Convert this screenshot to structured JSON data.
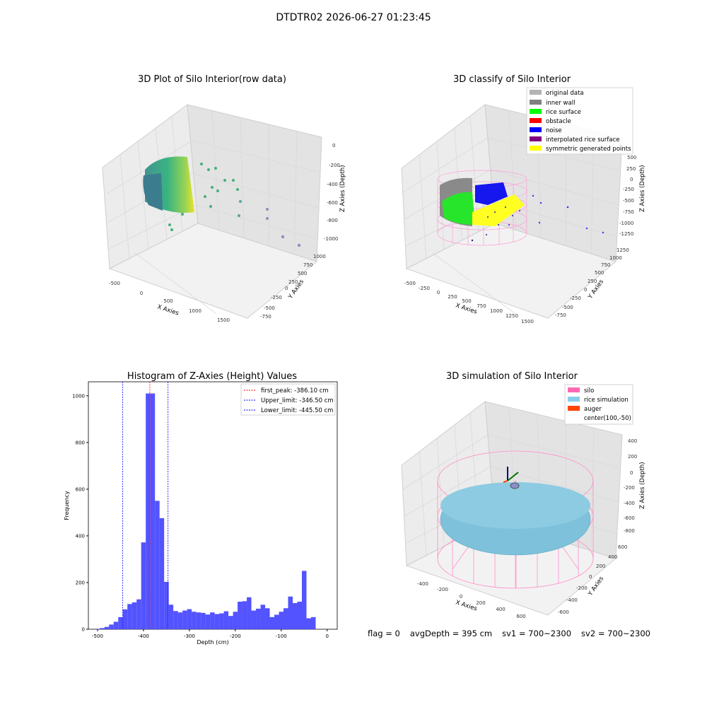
{
  "figure": {
    "suptitle": "DTDTR02 2026-06-27 01:23:45",
    "footer": {
      "flag": "flag = 0",
      "avg": "avgDepth = 395 cm",
      "sv1": "sv1 = 700~2300",
      "sv2": "sv2 = 700~2300"
    }
  },
  "chart_data": [
    {
      "type": "scatter3d",
      "title": "3D Plot of Silo Interior(row data)",
      "xlabel": "X Axies",
      "ylabel": "Y Axies",
      "zlabel": "Z Axies (Depth)",
      "xticks": [
        "-500",
        "0",
        "500",
        "1000",
        "1500"
      ],
      "yticks": [
        "-750",
        "-500",
        "-250",
        "0",
        "250",
        "500",
        "750",
        "1000"
      ],
      "zticks": [
        "0",
        "-200",
        "-400",
        "-600",
        "-800",
        "-1000"
      ],
      "colormap": "viridis",
      "grid": true
    },
    {
      "type": "scatter3d",
      "title": "3D classify of Silo Interior",
      "xlabel": "X Axies",
      "ylabel": "Y Axies",
      "zlabel": "Z Axies (Depth)",
      "xticks": [
        "-500",
        "-250",
        "0",
        "250",
        "500",
        "750",
        "1000",
        "1250",
        "1500"
      ],
      "yticks": [
        "-750",
        "-500",
        "-250",
        "0",
        "250",
        "500",
        "750",
        "1000",
        "1250"
      ],
      "zticks": [
        "500",
        "250",
        "0",
        "-250",
        "-500",
        "-750",
        "-1000",
        "-1250"
      ],
      "legend_position": "top-right",
      "legend": [
        {
          "label": "original data",
          "color": "#b3b3b3"
        },
        {
          "label": "inner wall",
          "color": "#808080"
        },
        {
          "label": "rice surface",
          "color": "#00ff00"
        },
        {
          "label": "obstacle",
          "color": "#ff0000"
        },
        {
          "label": "noise",
          "color": "#0000ff"
        },
        {
          "label": "interpolated rice surface",
          "color": "#800080"
        },
        {
          "label": "symmetric generated points",
          "color": "#ffff00"
        }
      ],
      "grid": true
    },
    {
      "type": "bar",
      "title": "Histogram of Z-Axies (Height) Values",
      "xlabel": "Depth (cm)",
      "ylabel": "Frequency",
      "xlim": [
        -520,
        22
      ],
      "ylim": [
        0,
        1060
      ],
      "xticks": [
        -500,
        -400,
        -300,
        -200,
        -100,
        0
      ],
      "yticks": [
        0,
        200,
        400,
        600,
        800,
        1000
      ],
      "bin_start": -505,
      "bin_width": 10,
      "values": [
        2,
        5,
        10,
        20,
        32,
        52,
        85,
        108,
        115,
        128,
        372,
        1010,
        1010,
        550,
        476,
        203,
        105,
        78,
        72,
        80,
        86,
        75,
        72,
        70,
        63,
        72,
        65,
        68,
        77,
        57,
        75,
        118,
        120,
        137,
        80,
        88,
        105,
        90,
        52,
        62,
        75,
        90,
        140,
        112,
        118,
        250,
        47,
        52
      ],
      "bar_color": "#4a4aff",
      "vlines": [
        {
          "label": "first_peak: -386.10 cm",
          "x": -386.1,
          "color": "#ff0000"
        },
        {
          "label": "Upper_limit: -346.50 cm",
          "x": -346.5,
          "color": "#0000ff"
        },
        {
          "label": "Lower_limit: -445.50 cm",
          "x": -445.5,
          "color": "#0000ff"
        }
      ],
      "legend_position": "top-right",
      "grid": false
    },
    {
      "type": "surface3d",
      "title": "3D simulation of Silo Interior",
      "xlabel": "X Axies",
      "ylabel": "Y Axies",
      "zlabel": "Z Axies (Depth)",
      "xticks": [
        "-400",
        "-200",
        "0",
        "200",
        "400",
        "600"
      ],
      "yticks": [
        "-600",
        "-400",
        "-200",
        "0",
        "200",
        "400",
        "600"
      ],
      "zticks": [
        "400",
        "200",
        "0",
        "-200",
        "-400",
        "-600",
        "-800"
      ],
      "legend_position": "top-right",
      "legend": [
        {
          "label": "silo",
          "color": "#ff69b4"
        },
        {
          "label": "rice simulation",
          "color": "#87ceeb"
        },
        {
          "label": "auger",
          "color": "#ff4500"
        },
        {
          "label": "center(100,-50)",
          "color": "#ffffff"
        }
      ],
      "grid": true
    }
  ]
}
